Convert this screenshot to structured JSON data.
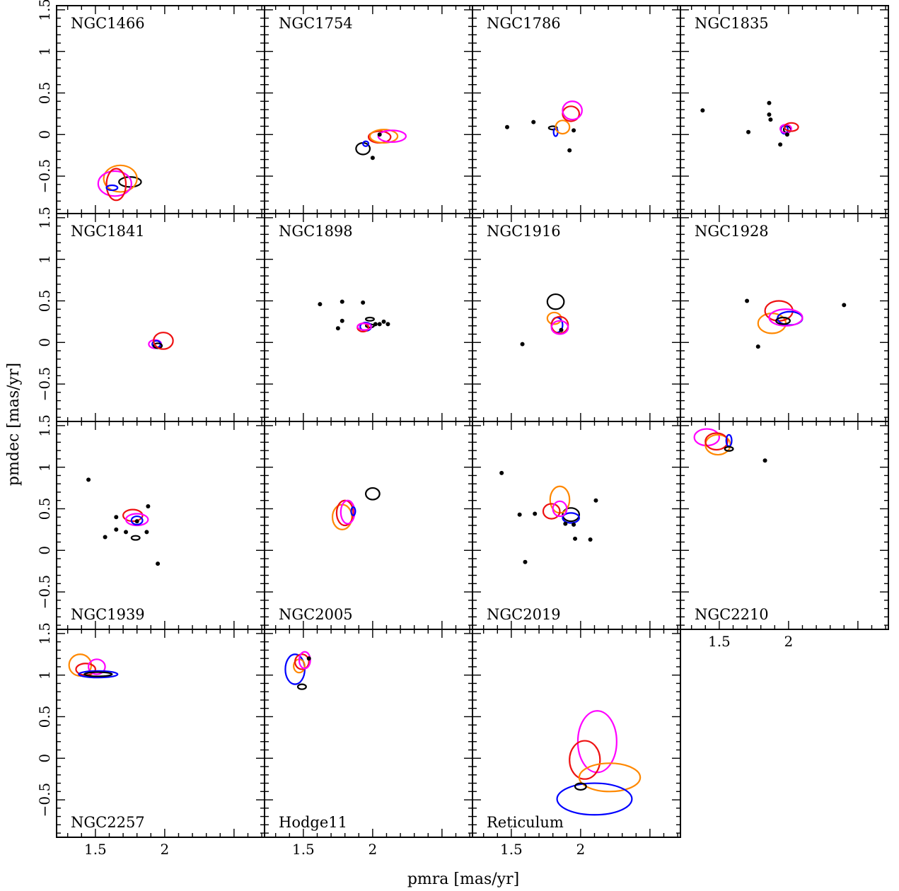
{
  "figure": {
    "xlabel": "pmra [mas/yr]",
    "ylabel": "pmdec [mas/yr]",
    "xlim": [
      1.22,
      2.72
    ],
    "ylim": [
      -0.95,
      1.55
    ],
    "xticks_major": [
      1.5,
      2.0,
      2.5
    ],
    "xtick_labels": [
      "1.5",
      "2"
    ],
    "ytick_labels": [
      "−0.5",
      "0",
      "0.5",
      "1",
      "1.5"
    ],
    "ytick_values": [
      -0.5,
      0,
      0.5,
      1,
      1.5
    ],
    "grid": false,
    "colors": {
      "black": "#000000",
      "blue": "#0000ff",
      "red": "#ee1111",
      "orange": "#ff8800",
      "magenta": "#ff00ff"
    }
  },
  "chart_data": [
    {
      "type": "scatter",
      "name": "NGC1466",
      "label_pos": "top",
      "points": [],
      "ellipses": [
        {
          "color": "black",
          "x": 1.75,
          "y": -0.57,
          "rx": 0.08,
          "ry": 0.06
        },
        {
          "color": "orange",
          "x": 1.68,
          "y": -0.53,
          "rx": 0.12,
          "ry": 0.16
        },
        {
          "color": "magenta",
          "x": 1.64,
          "y": -0.59,
          "rx": 0.12,
          "ry": 0.15
        },
        {
          "color": "red",
          "x": 1.65,
          "y": -0.6,
          "rx": 0.07,
          "ry": 0.19
        },
        {
          "color": "blue",
          "x": 1.62,
          "y": -0.64,
          "rx": 0.04,
          "ry": 0.03
        }
      ]
    },
    {
      "type": "scatter",
      "name": "NGC1754",
      "label_pos": "top",
      "points": [
        [
          2.0,
          -0.28
        ],
        [
          2.05,
          0.0
        ]
      ],
      "ellipses": [
        {
          "color": "black",
          "x": 1.93,
          "y": -0.17,
          "rx": 0.05,
          "ry": 0.07
        },
        {
          "color": "blue",
          "x": 1.95,
          "y": -0.11,
          "rx": 0.02,
          "ry": 0.03
        },
        {
          "color": "red",
          "x": 2.05,
          "y": -0.03,
          "rx": 0.08,
          "ry": 0.07
        },
        {
          "color": "orange",
          "x": 2.08,
          "y": -0.02,
          "rx": 0.1,
          "ry": 0.08
        },
        {
          "color": "magenta",
          "x": 2.14,
          "y": -0.02,
          "rx": 0.1,
          "ry": 0.07
        }
      ]
    },
    {
      "type": "scatter",
      "name": "NGC1786",
      "label_pos": "top",
      "points": [
        [
          1.47,
          0.09
        ],
        [
          1.66,
          0.15
        ],
        [
          1.95,
          0.05
        ],
        [
          1.92,
          -0.19
        ]
      ],
      "ellipses": [
        {
          "color": "black",
          "x": 1.8,
          "y": 0.08,
          "rx": 0.03,
          "ry": 0.02
        },
        {
          "color": "blue",
          "x": 1.82,
          "y": 0.03,
          "rx": 0.015,
          "ry": 0.05
        },
        {
          "color": "orange",
          "x": 1.87,
          "y": 0.09,
          "rx": 0.05,
          "ry": 0.08
        },
        {
          "color": "red",
          "x": 1.93,
          "y": 0.25,
          "rx": 0.06,
          "ry": 0.09
        },
        {
          "color": "magenta",
          "x": 1.94,
          "y": 0.29,
          "rx": 0.07,
          "ry": 0.11
        }
      ]
    },
    {
      "type": "scatter",
      "name": "NGC1835",
      "label_pos": "top",
      "points": [
        [
          1.38,
          0.29
        ],
        [
          1.71,
          0.03
        ],
        [
          1.86,
          0.38
        ],
        [
          1.86,
          0.24
        ],
        [
          1.87,
          0.18
        ],
        [
          1.94,
          -0.12
        ],
        [
          1.99,
          0.0
        ]
      ],
      "ellipses": [
        {
          "color": "black",
          "x": 1.99,
          "y": 0.06,
          "rx": 0.025,
          "ry": 0.04
        },
        {
          "color": "blue",
          "x": 1.97,
          "y": 0.06,
          "rx": 0.025,
          "ry": 0.05
        },
        {
          "color": "magenta",
          "x": 1.98,
          "y": 0.07,
          "rx": 0.04,
          "ry": 0.05
        },
        {
          "color": "red",
          "x": 2.02,
          "y": 0.09,
          "rx": 0.05,
          "ry": 0.05
        }
      ]
    },
    {
      "type": "scatter",
      "name": "NGC1841",
      "label_pos": "top",
      "points": [],
      "ellipses": [
        {
          "color": "magenta",
          "x": 1.93,
          "y": -0.02,
          "rx": 0.045,
          "ry": 0.05
        },
        {
          "color": "blue",
          "x": 1.94,
          "y": -0.02,
          "rx": 0.03,
          "ry": 0.04
        },
        {
          "color": "black",
          "x": 1.95,
          "y": -0.04,
          "rx": 0.03,
          "ry": 0.03
        },
        {
          "color": "red",
          "x": 1.99,
          "y": 0.02,
          "rx": 0.07,
          "ry": 0.1
        }
      ]
    },
    {
      "type": "scatter",
      "name": "NGC1898",
      "label_pos": "top",
      "points": [
        [
          1.62,
          0.46
        ],
        [
          1.75,
          0.17
        ],
        [
          1.78,
          0.49
        ],
        [
          1.78,
          0.26
        ],
        [
          1.93,
          0.48
        ],
        [
          2.02,
          0.22
        ],
        [
          2.05,
          0.22
        ],
        [
          2.08,
          0.25
        ],
        [
          2.11,
          0.22
        ]
      ],
      "ellipses": [
        {
          "color": "black",
          "x": 1.98,
          "y": 0.28,
          "rx": 0.03,
          "ry": 0.02
        },
        {
          "color": "black",
          "x": 1.98,
          "y": 0.2,
          "rx": 0.03,
          "ry": 0.02
        },
        {
          "color": "blue",
          "x": 1.95,
          "y": 0.19,
          "rx": 0.04,
          "ry": 0.05
        },
        {
          "color": "red",
          "x": 1.93,
          "y": 0.18,
          "rx": 0.04,
          "ry": 0.05
        },
        {
          "color": "magenta",
          "x": 1.94,
          "y": 0.19,
          "rx": 0.05,
          "ry": 0.04
        }
      ]
    },
    {
      "type": "scatter",
      "name": "NGC1916",
      "label_pos": "top",
      "points": [
        [
          1.58,
          -0.02
        ],
        [
          1.86,
          0.15
        ]
      ],
      "ellipses": [
        {
          "color": "black",
          "x": 1.82,
          "y": 0.49,
          "rx": 0.06,
          "ry": 0.09
        },
        {
          "color": "orange",
          "x": 1.81,
          "y": 0.29,
          "rx": 0.05,
          "ry": 0.07
        },
        {
          "color": "blue",
          "x": 1.83,
          "y": 0.21,
          "rx": 0.04,
          "ry": 0.09
        },
        {
          "color": "red",
          "x": 1.85,
          "y": 0.21,
          "rx": 0.06,
          "ry": 0.1
        },
        {
          "color": "magenta",
          "x": 1.85,
          "y": 0.18,
          "rx": 0.06,
          "ry": 0.08
        }
      ]
    },
    {
      "type": "scatter",
      "name": "NGC1928",
      "label_pos": "top",
      "points": [
        [
          1.7,
          0.5
        ],
        [
          1.78,
          -0.05
        ],
        [
          2.4,
          0.45
        ]
      ],
      "ellipses": [
        {
          "color": "orange",
          "x": 1.88,
          "y": 0.23,
          "rx": 0.1,
          "ry": 0.12
        },
        {
          "color": "red",
          "x": 1.93,
          "y": 0.38,
          "rx": 0.1,
          "ry": 0.12
        },
        {
          "color": "blue",
          "x": 2.01,
          "y": 0.29,
          "rx": 0.09,
          "ry": 0.08
        },
        {
          "color": "magenta",
          "x": 1.98,
          "y": 0.3,
          "rx": 0.12,
          "ry": 0.1
        },
        {
          "color": "black",
          "x": 1.96,
          "y": 0.26,
          "rx": 0.05,
          "ry": 0.04
        }
      ]
    },
    {
      "type": "scatter",
      "name": "NGC1939",
      "label_pos": "bottom",
      "points": [
        [
          1.45,
          0.85
        ],
        [
          1.57,
          0.16
        ],
        [
          1.65,
          0.4
        ],
        [
          1.65,
          0.25
        ],
        [
          1.72,
          0.22
        ],
        [
          1.88,
          0.53
        ],
        [
          1.87,
          0.22
        ],
        [
          1.95,
          -0.16
        ],
        [
          1.8,
          0.35
        ]
      ],
      "ellipses": [
        {
          "color": "red",
          "x": 1.77,
          "y": 0.42,
          "rx": 0.07,
          "ry": 0.07
        },
        {
          "color": "magenta",
          "x": 1.8,
          "y": 0.37,
          "rx": 0.08,
          "ry": 0.07
        },
        {
          "color": "blue",
          "x": 1.8,
          "y": 0.36,
          "rx": 0.04,
          "ry": 0.05
        },
        {
          "color": "black",
          "x": 1.79,
          "y": 0.15,
          "rx": 0.03,
          "ry": 0.025
        }
      ]
    },
    {
      "type": "scatter",
      "name": "NGC2005",
      "label_pos": "bottom",
      "points": [],
      "ellipses": [
        {
          "color": "black",
          "x": 2.0,
          "y": 0.68,
          "rx": 0.05,
          "ry": 0.07
        },
        {
          "color": "orange",
          "x": 1.78,
          "y": 0.4,
          "rx": 0.07,
          "ry": 0.15
        },
        {
          "color": "red",
          "x": 1.8,
          "y": 0.45,
          "rx": 0.06,
          "ry": 0.15
        },
        {
          "color": "magenta",
          "x": 1.82,
          "y": 0.46,
          "rx": 0.05,
          "ry": 0.14
        },
        {
          "color": "blue",
          "x": 1.86,
          "y": 0.47,
          "rx": 0.015,
          "ry": 0.05
        }
      ]
    },
    {
      "type": "scatter",
      "name": "NGC2019",
      "label_pos": "bottom",
      "points": [
        [
          1.43,
          0.93
        ],
        [
          1.56,
          0.43
        ],
        [
          1.6,
          -0.14
        ],
        [
          1.67,
          0.44
        ],
        [
          1.95,
          0.31
        ],
        [
          1.96,
          0.14
        ],
        [
          2.07,
          0.13
        ],
        [
          2.11,
          0.6
        ],
        [
          1.89,
          0.32
        ]
      ],
      "ellipses": [
        {
          "color": "black",
          "x": 1.93,
          "y": 0.43,
          "rx": 0.06,
          "ry": 0.08
        },
        {
          "color": "blue",
          "x": 1.93,
          "y": 0.39,
          "rx": 0.06,
          "ry": 0.06
        },
        {
          "color": "orange",
          "x": 1.85,
          "y": 0.61,
          "rx": 0.07,
          "ry": 0.16
        },
        {
          "color": "red",
          "x": 1.79,
          "y": 0.47,
          "rx": 0.06,
          "ry": 0.09
        },
        {
          "color": "magenta",
          "x": 1.85,
          "y": 0.5,
          "rx": 0.05,
          "ry": 0.09
        }
      ]
    },
    {
      "type": "scatter",
      "name": "NGC2210",
      "label_pos": "bottom",
      "points": [
        [
          1.83,
          1.08
        ]
      ],
      "ellipses": [
        {
          "color": "magenta",
          "x": 1.41,
          "y": 1.36,
          "rx": 0.09,
          "ry": 0.1
        },
        {
          "color": "orange",
          "x": 1.49,
          "y": 1.27,
          "rx": 0.09,
          "ry": 0.12
        },
        {
          "color": "red",
          "x": 1.48,
          "y": 1.31,
          "rx": 0.08,
          "ry": 0.1
        },
        {
          "color": "blue",
          "x": 1.57,
          "y": 1.32,
          "rx": 0.02,
          "ry": 0.07
        },
        {
          "color": "black",
          "x": 1.57,
          "y": 1.22,
          "rx": 0.03,
          "ry": 0.025
        }
      ]
    },
    {
      "type": "scatter",
      "name": "NGC2257",
      "label_pos": "bottom",
      "points": [],
      "ellipses": [
        {
          "color": "orange",
          "x": 1.39,
          "y": 1.12,
          "rx": 0.08,
          "ry": 0.13
        },
        {
          "color": "red",
          "x": 1.43,
          "y": 1.07,
          "rx": 0.07,
          "ry": 0.07
        },
        {
          "color": "magenta",
          "x": 1.51,
          "y": 1.1,
          "rx": 0.06,
          "ry": 0.09
        },
        {
          "color": "blue",
          "x": 1.52,
          "y": 1.01,
          "rx": 0.14,
          "ry": 0.04
        },
        {
          "color": "black",
          "x": 1.52,
          "y": 1.01,
          "rx": 0.1,
          "ry": 0.025
        }
      ]
    },
    {
      "type": "scatter",
      "name": "Hodge11",
      "label_pos": "bottom",
      "points": [
        [
          1.54,
          1.2
        ]
      ],
      "ellipses": [
        {
          "color": "blue",
          "x": 1.44,
          "y": 1.07,
          "rx": 0.07,
          "ry": 0.18
        },
        {
          "color": "orange",
          "x": 1.47,
          "y": 1.11,
          "rx": 0.04,
          "ry": 0.08
        },
        {
          "color": "red",
          "x": 1.49,
          "y": 1.16,
          "rx": 0.05,
          "ry": 0.09
        },
        {
          "color": "magenta",
          "x": 1.51,
          "y": 1.18,
          "rx": 0.04,
          "ry": 0.1
        },
        {
          "color": "black",
          "x": 1.49,
          "y": 0.86,
          "rx": 0.03,
          "ry": 0.03
        }
      ]
    },
    {
      "type": "scatter",
      "name": "Reticulum",
      "label_pos": "bottom",
      "points": [],
      "ellipses": [
        {
          "color": "magenta",
          "x": 2.12,
          "y": 0.2,
          "rx": 0.14,
          "ry": 0.37
        },
        {
          "color": "red",
          "x": 2.03,
          "y": -0.02,
          "rx": 0.11,
          "ry": 0.23
        },
        {
          "color": "orange",
          "x": 2.21,
          "y": -0.23,
          "rx": 0.22,
          "ry": 0.17
        },
        {
          "color": "blue",
          "x": 2.1,
          "y": -0.49,
          "rx": 0.27,
          "ry": 0.19
        },
        {
          "color": "black",
          "x": 2.0,
          "y": -0.34,
          "rx": 0.04,
          "ry": 0.04
        }
      ]
    }
  ]
}
